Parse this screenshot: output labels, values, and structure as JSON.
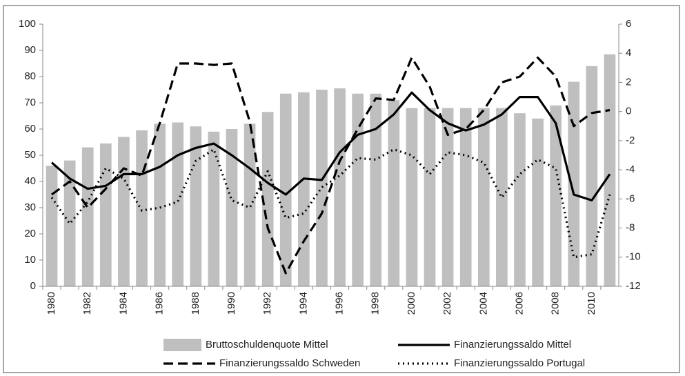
{
  "chart_data": {
    "type": "combo",
    "categories": [
      "1980",
      null,
      "1982",
      null,
      "1984",
      null,
      "1986",
      null,
      "1988",
      null,
      "1990",
      null,
      "1992",
      null,
      "1994",
      null,
      "1996",
      null,
      "1998",
      null,
      "2000",
      null,
      "2002",
      null,
      "2004",
      null,
      "2006",
      null,
      "2008",
      null,
      "2010",
      null
    ],
    "ylim": [
      0,
      100
    ],
    "yticks": [
      0,
      10,
      20,
      30,
      40,
      50,
      60,
      70,
      80,
      90,
      100
    ],
    "y2lim": [
      -12,
      6
    ],
    "y2ticks": [
      -12,
      -10,
      -8,
      -6,
      -4,
      -2,
      0,
      2,
      4,
      6
    ],
    "grid": false,
    "legend": "bottom",
    "series": [
      {
        "name": "Bruttoschuldenquote Mittel",
        "type": "bar",
        "color": "#bfbfbf",
        "values": [
          46,
          48,
          53,
          54.5,
          57,
          59.5,
          62,
          62.5,
          61,
          59,
          60,
          62,
          66.5,
          73.5,
          74,
          75,
          75.5,
          73.5,
          73.5,
          71,
          68,
          68,
          68,
          68,
          68,
          68,
          66,
          64,
          69,
          78,
          84,
          88.5
        ]
      },
      {
        "name": "Finanzierungssaldo Mittel",
        "type": "line",
        "axis": "y2",
        "color": "#000000",
        "line_style": "solid",
        "values": [
          -3.5,
          -4.6,
          -5.3,
          -5.1,
          -4.3,
          -4.3,
          -3.8,
          -3,
          -2.5,
          -2.2,
          -3,
          -3.9,
          -4.9,
          -5.7,
          -4.6,
          -4.7,
          -2.8,
          -1.6,
          -1.2,
          -0.2,
          1.3,
          0.1,
          -0.8,
          -1.3,
          -0.9,
          -0.2,
          1,
          1,
          -0.8,
          -5.7,
          -6.1,
          -4.3
        ]
      },
      {
        "name": "Finanzierungssaldo Schweden",
        "type": "line",
        "axis": "y2",
        "color": "#000000",
        "line_style": "dashed",
        "values": [
          -5.7,
          -4.8,
          -6.6,
          -5.3,
          -3.9,
          -4.4,
          -0.8,
          3.3,
          3.3,
          3.2,
          3.3,
          -0.7,
          -8,
          -11.1,
          -8.9,
          -7,
          -3.4,
          -1.2,
          0.9,
          0.8,
          3.7,
          1.7,
          -1.6,
          -1.2,
          0.1,
          2,
          2.4,
          3.7,
          2.4,
          -1,
          -0.1,
          0.1
        ]
      },
      {
        "name": "Finanzierungssaldo Portugal",
        "type": "line",
        "axis": "y2",
        "color": "#000000",
        "line_style": "dotted",
        "values": [
          -5.9,
          -7.7,
          -6.2,
          -3.9,
          -4.6,
          -6.8,
          -6.6,
          -6.2,
          -3.4,
          -2.6,
          -6.1,
          -6.6,
          -4.1,
          -7.3,
          -7,
          -5.2,
          -4.4,
          -3.2,
          -3.3,
          -2.6,
          -3,
          -4.3,
          -2.8,
          -3,
          -3.5,
          -5.9,
          -4.3,
          -3.3,
          -3.9,
          -10,
          -9.8,
          -5.7
        ]
      }
    ]
  }
}
